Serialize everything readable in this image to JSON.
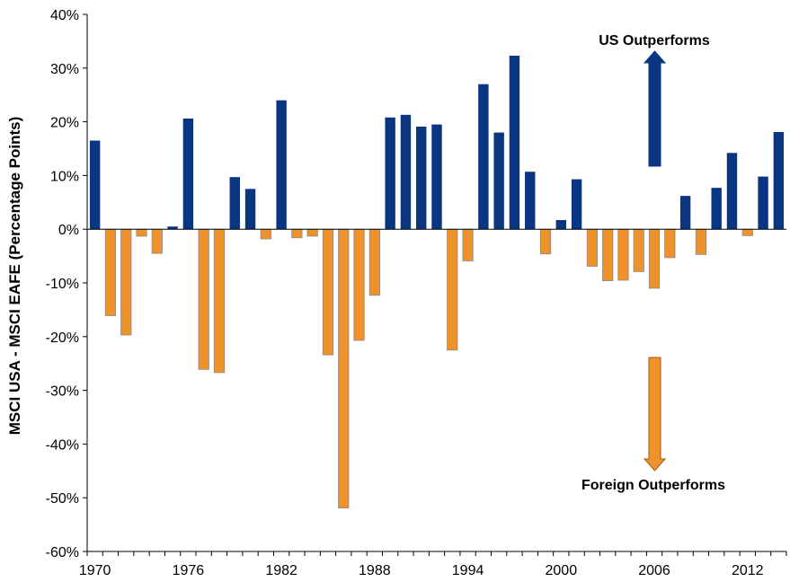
{
  "chart_data": {
    "type": "bar",
    "title": "",
    "xlabel": "",
    "ylabel": "MSCI USA - MSCI EAFE  (Percentage Points)",
    "ylim": [
      -60,
      40
    ],
    "y_ticks": [
      "40%",
      "30%",
      "20%",
      "10%",
      "0%",
      "-10%",
      "-20%",
      "-30%",
      "-40%",
      "-50%",
      "-60%"
    ],
    "x_ticks": [
      "1970",
      "1976",
      "1982",
      "1988",
      "1994",
      "2000",
      "2006",
      "2012"
    ],
    "grid": false,
    "categories": [
      "1970",
      "1971",
      "1972",
      "1973",
      "1974",
      "1975",
      "1976",
      "1977",
      "1978",
      "1979",
      "1980",
      "1981",
      "1982",
      "1983",
      "1984",
      "1985",
      "1986",
      "1987",
      "1988",
      "1989",
      "1990",
      "1991",
      "1992",
      "1993",
      "1994",
      "1995",
      "1996",
      "1997",
      "1998",
      "1999",
      "2000",
      "2001",
      "2002",
      "2003",
      "2004",
      "2005",
      "2006",
      "2007",
      "2008",
      "2009",
      "2010",
      "2011",
      "2012",
      "2013",
      "2014"
    ],
    "values": [
      16.5,
      -16.1,
      -19.7,
      -1.3,
      -4.5,
      0.5,
      20.6,
      -26.1,
      -26.7,
      9.7,
      7.5,
      -1.8,
      24.0,
      -1.6,
      -1.3,
      -23.4,
      -51.9,
      -20.7,
      -12.3,
      20.8,
      21.3,
      19.1,
      19.5,
      -22.5,
      -5.9,
      27.0,
      18.0,
      32.3,
      10.7,
      -4.6,
      1.7,
      9.3,
      -6.9,
      -9.6,
      -9.5,
      -7.9,
      -11.0,
      -5.3,
      6.2,
      -4.7,
      7.7,
      14.2,
      -1.2,
      9.8,
      18.1
    ],
    "colors": {
      "positive": "#0A3580",
      "negative": "#F0922B",
      "outline": "#8A8A8A"
    },
    "annotations": [
      {
        "text": "US Outperforms",
        "arrow": "up",
        "color": "#0A3580"
      },
      {
        "text": "Foreign Outperforms",
        "arrow": "down",
        "color": "#F0922B"
      }
    ]
  }
}
